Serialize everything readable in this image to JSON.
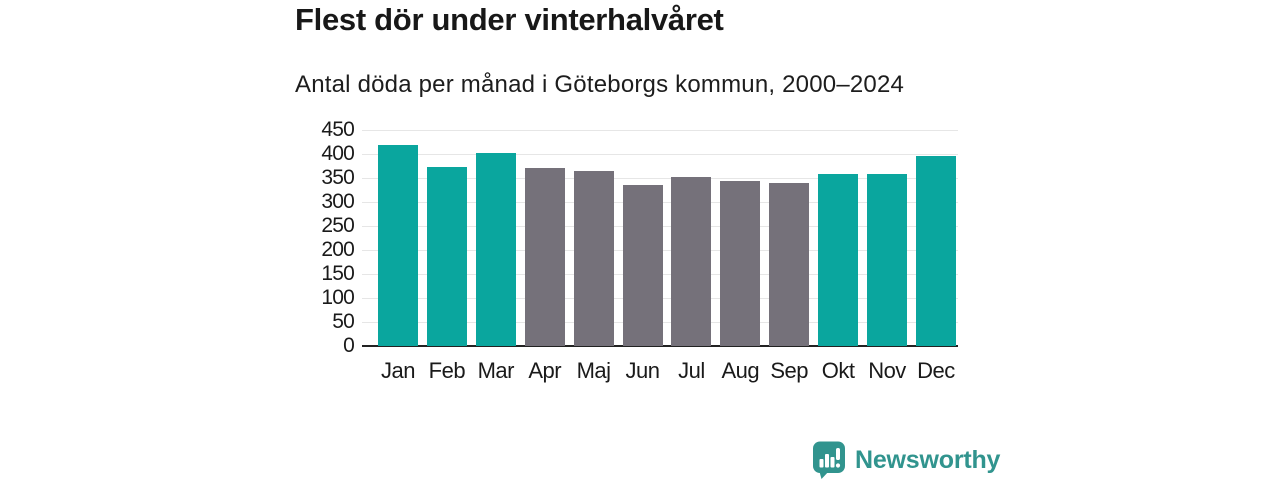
{
  "title": "Flest dör under vinterhalvåret",
  "subtitle": "Antal döda per månad i Göteborgs kommun, 2000–2024",
  "chart_data": {
    "type": "bar",
    "categories": [
      "Jan",
      "Feb",
      "Mar",
      "Apr",
      "Maj",
      "Jun",
      "Jul",
      "Aug",
      "Sep",
      "Okt",
      "Nov",
      "Dec"
    ],
    "values": [
      418,
      372,
      403,
      371,
      365,
      335,
      353,
      343,
      339,
      358,
      359,
      396
    ],
    "highlighted": [
      true,
      true,
      true,
      false,
      false,
      false,
      false,
      false,
      false,
      true,
      true,
      true
    ],
    "title": "Flest dör under vinterhalvåret",
    "subtitle": "Antal döda per månad i Göteborgs kommun, 2000–2024",
    "xlabel": "",
    "ylabel": "",
    "ylim": [
      0,
      450
    ],
    "ytick_step": 50,
    "grid": true,
    "legend": "none",
    "colors": {
      "highlight": "#0aa69e",
      "default": "#75717a",
      "gridline": "#e6e6e6",
      "axis": "#222222"
    }
  },
  "branding": {
    "logo_text": "Newsworthy",
    "logo_color": "#31948e",
    "logo_icon": "bar-chart-speech-bubble-icon"
  }
}
